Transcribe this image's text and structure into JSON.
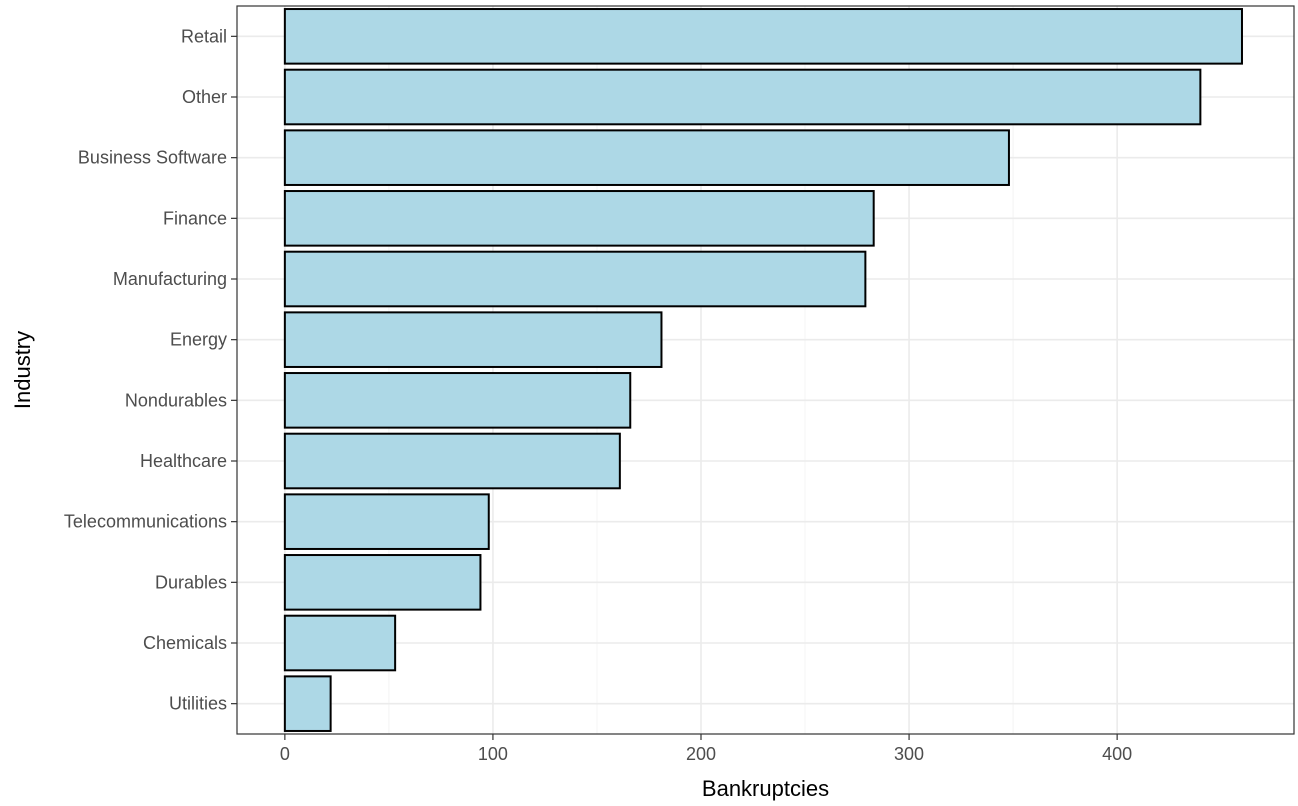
{
  "chart_data": {
    "type": "bar",
    "orientation": "horizontal",
    "categories": [
      "Retail",
      "Other",
      "Business Software",
      "Finance",
      "Manufacturing",
      "Energy",
      "Nondurables",
      "Healthcare",
      "Telecommunications",
      "Durables",
      "Chemicals",
      "Utilities"
    ],
    "values": [
      460,
      440,
      348,
      283,
      279,
      181,
      166,
      161,
      98,
      94,
      53,
      22
    ],
    "title": "",
    "xlabel": "Bankruptcies",
    "ylabel": "Industry",
    "xlim": [
      -23,
      485
    ],
    "xticks": [
      0,
      100,
      200,
      300,
      400
    ],
    "grid": true,
    "legend": "none",
    "colors": {
      "bar_fill": "#add8e6",
      "bar_stroke": "#000000",
      "grid_major": "#ebebeb",
      "grid_minor": "#f4f4f4",
      "panel_border": "#333333",
      "tick_text": "#4d4d4d"
    }
  }
}
